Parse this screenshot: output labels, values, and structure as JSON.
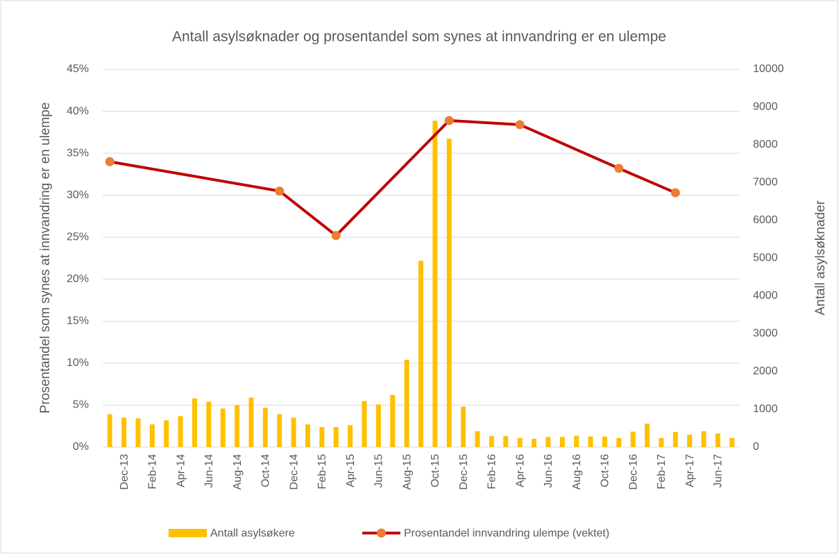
{
  "chart_data": {
    "type": "combo",
    "title": "Antall asylsøknader og prosentandel som synes at innvandring er en ulempe",
    "ylabel": "Prosentandel som synes at innvandring er en ulempe",
    "y2label": "Antall asylsøknader",
    "categories": [
      null,
      "Dec-13",
      null,
      "Feb-14",
      null,
      "Apr-14",
      null,
      "Jun-14",
      null,
      "Aug-14",
      null,
      "Oct-14",
      null,
      "Dec-14",
      null,
      "Feb-15",
      null,
      "Apr-15",
      null,
      "Jun-15",
      null,
      "Aug-15",
      null,
      "Oct-15",
      null,
      "Dec-15",
      null,
      "Feb-16",
      null,
      "Apr-16",
      null,
      "Jun-16",
      null,
      "Aug-16",
      null,
      "Oct-16",
      null,
      "Dec-16",
      null,
      "Feb-17",
      null,
      "Apr-17",
      null,
      "Jun-17",
      null
    ],
    "series": [
      {
        "name": "Antall asylsøkere",
        "type": "bar",
        "axis": "y2",
        "color": "#FFC000",
        "values": [
          870,
          780,
          760,
          600,
          710,
          820,
          1290,
          1200,
          1020,
          1110,
          1310,
          1040,
          870,
          780,
          600,
          530,
          530,
          580,
          1220,
          1130,
          1380,
          2310,
          4930,
          8640,
          8160,
          1070,
          420,
          290,
          290,
          240,
          220,
          270,
          270,
          300,
          280,
          280,
          240,
          410,
          620,
          240,
          400,
          330,
          420,
          360,
          240
        ]
      },
      {
        "name": "Prosentandel innvandring ulempe (vektet)",
        "type": "line",
        "axis": "y",
        "color": "#C00000",
        "marker_color": "#ED7D31",
        "connect_gaps": true,
        "values": [
          34.0,
          null,
          null,
          null,
          null,
          null,
          null,
          null,
          null,
          null,
          null,
          null,
          30.5,
          null,
          null,
          null,
          25.2,
          null,
          null,
          null,
          null,
          null,
          null,
          null,
          38.9,
          null,
          null,
          null,
          null,
          38.4,
          null,
          null,
          null,
          null,
          null,
          null,
          33.2,
          null,
          null,
          null,
          30.3,
          null,
          null,
          null,
          null
        ]
      }
    ],
    "ylim": [
      0,
      45
    ],
    "yticks": [
      {
        "value": 0,
        "label": "0%"
      },
      {
        "value": 5,
        "label": "5%"
      },
      {
        "value": 10,
        "label": "10%"
      },
      {
        "value": 15,
        "label": "15%"
      },
      {
        "value": 20,
        "label": "20%"
      },
      {
        "value": 25,
        "label": "25%"
      },
      {
        "value": 30,
        "label": "30%"
      },
      {
        "value": 35,
        "label": "35%"
      },
      {
        "value": 40,
        "label": "40%"
      },
      {
        "value": 45,
        "label": "45%"
      }
    ],
    "y2lim": [
      0,
      10000
    ],
    "y2ticks": [
      0,
      1000,
      2000,
      3000,
      4000,
      5000,
      6000,
      7000,
      8000,
      9000,
      10000
    ],
    "grid": true,
    "legend": "bottom"
  }
}
